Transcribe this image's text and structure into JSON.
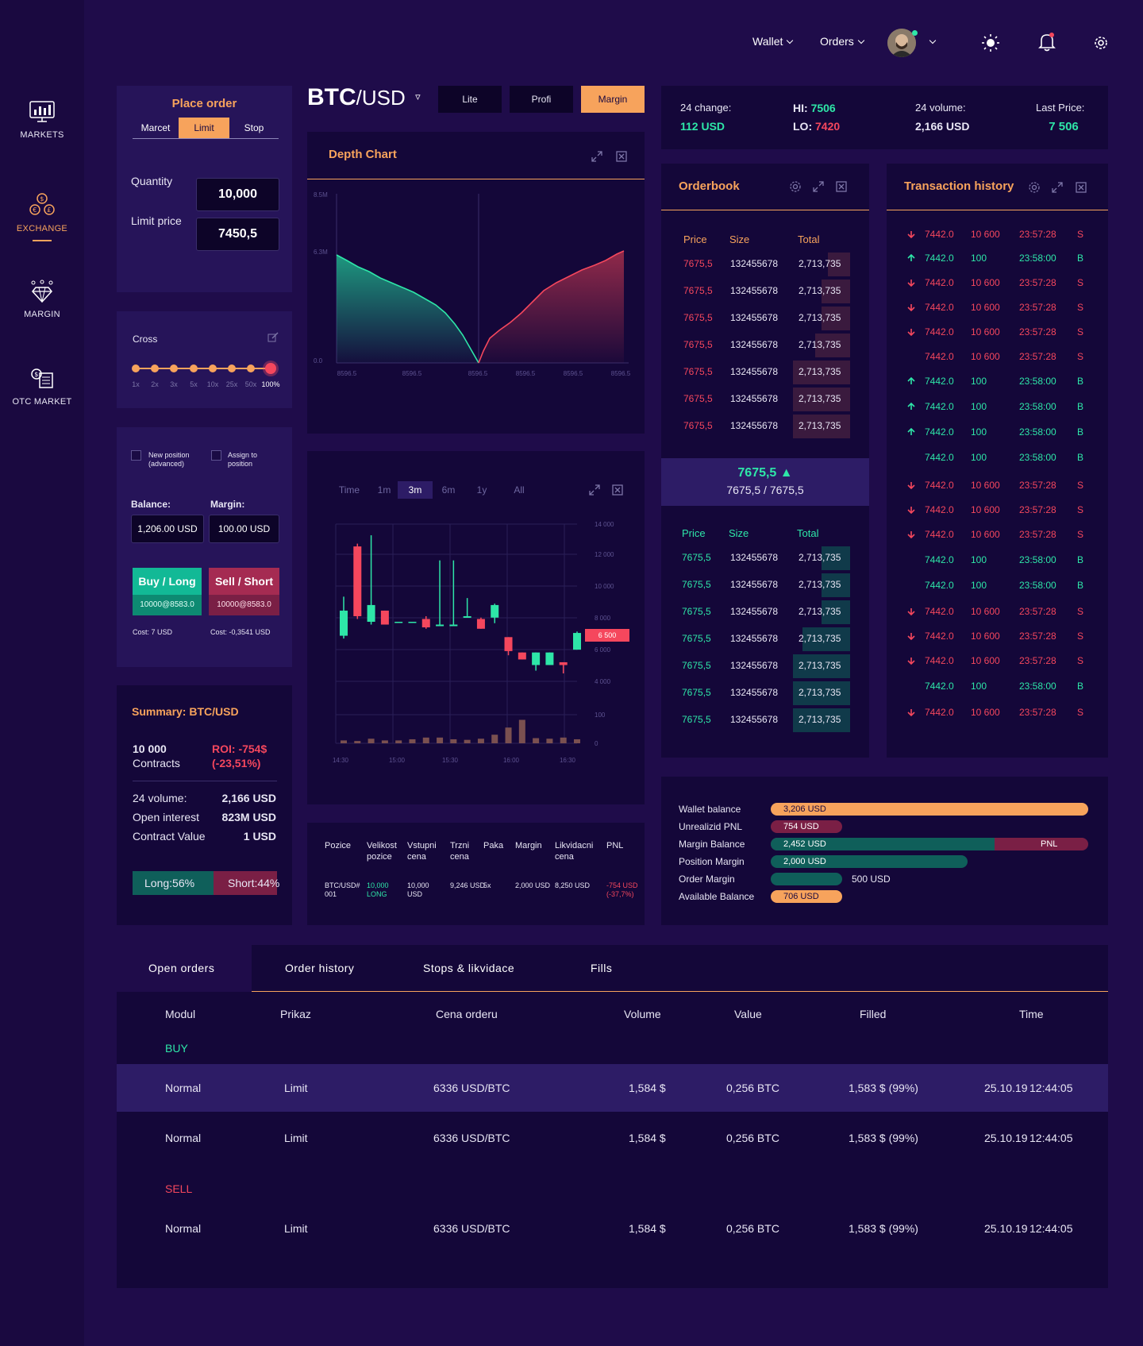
{
  "nav": {
    "markets": "MARKETS",
    "exchange": "EXCHANGE",
    "margin": "MARGIN",
    "otc": "OTC MARKET"
  },
  "topbar": {
    "wallet": "Wallet",
    "orders": "Orders"
  },
  "place_order": {
    "title": "Place order",
    "tabs": [
      "Marcet",
      "Limit",
      "Stop"
    ],
    "quantity_label": "Quantity",
    "quantity_value": "10,000",
    "limit_label": "Limit price",
    "limit_value": "7450,5"
  },
  "leverage": {
    "label": "Cross",
    "ticks": [
      "1x",
      "2x",
      "3x",
      "5x",
      "10x",
      "25x",
      "50x",
      "100%"
    ],
    "selected_index": 7
  },
  "position": {
    "new_position": "New position (advanced)",
    "assign": "Assign to position",
    "balance_label": "Balance:",
    "margin_label": "Margin:",
    "balance_value": "1,206.00 USD",
    "margin_value": "100.00 USD",
    "buy_label": "Buy / Long",
    "buy_sub": "10000@8583.0",
    "sell_label": "Sell / Short",
    "sell_sub": "10000@8583.0",
    "buy_cost": "Cost: 7 USD",
    "sell_cost": "Cost: -0,3541 USD"
  },
  "summary": {
    "title": "Summary: BTC/USD",
    "contracts_value": "10 000",
    "contracts_label": "Contracts",
    "roi_line1": "ROI: -754$",
    "roi_line2": "(-23,51%)",
    "rows": [
      {
        "label": "24 volume:",
        "value": "2,166 USD"
      },
      {
        "label": "Open interest",
        "value": "823M USD"
      },
      {
        "label": "Contract Value",
        "value": "1 USD"
      }
    ],
    "long": "Long:56%",
    "short": "Short:44%",
    "long_fraction": 0.56
  },
  "pair": {
    "base": "BTC",
    "quote": "/USD",
    "modes": [
      "Lite",
      "Profi",
      "Margin"
    ],
    "active_mode": 2
  },
  "depth": {
    "title": "Depth Chart",
    "y_ticks": [
      "8.5M",
      "6.3M",
      "0.0"
    ],
    "x_ticks": [
      "8596.5",
      "8596.5",
      "8596.5",
      "8596.5",
      "8596.5",
      "8596.5"
    ]
  },
  "candles": {
    "ranges": [
      "Time",
      "1m",
      "3m",
      "6m",
      "1y",
      "All"
    ],
    "active_range": 2,
    "y_ticks": [
      "14 000",
      "12 000",
      "10 000",
      "8 000",
      "6 000",
      "4 000",
      "100",
      "0"
    ],
    "x_ticks": [
      "14:30",
      "15:00",
      "15:30",
      "16:00",
      "16:30"
    ],
    "price_tag": "6 500",
    "ylim": [
      0,
      14000
    ],
    "series": [
      {
        "o": 6000,
        "c": 7800,
        "h": 8800,
        "l": 5800
      },
      {
        "o": 12400,
        "c": 7400,
        "h": 12600,
        "l": 7200
      },
      {
        "o": 7000,
        "c": 8200,
        "h": 13200,
        "l": 6800
      },
      {
        "o": 7800,
        "c": 6800,
        "h": 7800,
        "l": 6800
      },
      {
        "o": 7000,
        "c": 7000,
        "h": 7000,
        "l": 7000
      },
      {
        "o": 7000,
        "c": 7000,
        "h": 7000,
        "l": 7000
      },
      {
        "o": 7200,
        "c": 6600,
        "h": 7400,
        "l": 6500
      },
      {
        "o": 6800,
        "c": 6800,
        "h": 11400,
        "l": 6800
      },
      {
        "o": 6800,
        "c": 6800,
        "h": 11400,
        "l": 6800
      },
      {
        "o": 7400,
        "c": 7400,
        "h": 8700,
        "l": 7400
      },
      {
        "o": 7200,
        "c": 6500,
        "h": 7300,
        "l": 6500
      },
      {
        "o": 7300,
        "c": 8200,
        "h": 8300,
        "l": 6900
      },
      {
        "o": 5900,
        "c": 4900,
        "h": 5900,
        "l": 4600
      },
      {
        "o": 4800,
        "c": 4300,
        "h": 4800,
        "l": 4300
      },
      {
        "o": 3900,
        "c": 4800,
        "h": 4800,
        "l": 3500
      },
      {
        "o": 3900,
        "c": 4800,
        "h": 4800,
        "l": 3900
      },
      {
        "o": 4100,
        "c": 3900,
        "h": 4100,
        "l": 3300
      },
      {
        "o": 5000,
        "c": 6200,
        "h": 6300,
        "l": 5000
      }
    ],
    "volume": [
      10,
      8,
      16,
      10,
      10,
      14,
      20,
      20,
      14,
      12,
      16,
      30,
      55,
      82,
      18,
      16,
      20,
      14
    ]
  },
  "positions_table": {
    "headers": [
      "Pozice",
      "Velikost pozice",
      "Vstupni cena",
      "Trzni cena",
      "Paka",
      "Margin",
      "Likvidacni cena",
      "PNL"
    ],
    "row": {
      "pozice": "BTC/USD# 001",
      "velikost": "10,000 LONG",
      "vstupni": "10,000 USD",
      "trzni": "9,246 USD",
      "paka": "5x",
      "margin": "2,000 USD",
      "likv": "8,250 USD",
      "pnl": "-754 USD (-37,7%)"
    }
  },
  "ticker": {
    "change_label": "24 change:",
    "change_value": "112 USD",
    "hi_label": "HI:",
    "hi_value": "7506",
    "lo_label": "LO:",
    "lo_value": "7420",
    "volume_label": "24 volume:",
    "volume_value": "2,166 USD",
    "last_label": "Last Price:",
    "last_value": "7 506"
  },
  "orderbook": {
    "title": "Orderbook",
    "headers": [
      "Price",
      "Size",
      "Total"
    ],
    "asks": [
      {
        "price": "7675,5",
        "size": "132455678",
        "total": "2,713,735",
        "fill": 0.35
      },
      {
        "price": "7675,5",
        "size": "132455678",
        "total": "2,713,735",
        "fill": 0.45
      },
      {
        "price": "7675,5",
        "size": "132455678",
        "total": "2,713,735",
        "fill": 0.45
      },
      {
        "price": "7675,5",
        "size": "132455678",
        "total": "2,713,735",
        "fill": 0.55
      },
      {
        "price": "7675,5",
        "size": "132455678",
        "total": "2,713,735",
        "fill": 0.9
      },
      {
        "price": "7675,5",
        "size": "132455678",
        "total": "2,713,735",
        "fill": 0.9
      },
      {
        "price": "7675,5",
        "size": "132455678",
        "total": "2,713,735",
        "fill": 0.9
      }
    ],
    "mid_price": "7675,5 ▲",
    "mid_spread": "7675,5 / 7675,5",
    "bids": [
      {
        "price": "7675,5",
        "size": "132455678",
        "total": "2,713,735",
        "fill": 0.45
      },
      {
        "price": "7675,5",
        "size": "132455678",
        "total": "2,713,735",
        "fill": 0.45
      },
      {
        "price": "7675,5",
        "size": "132455678",
        "total": "2,713,735",
        "fill": 0.45
      },
      {
        "price": "7675,5",
        "size": "132455678",
        "total": "2,713,735",
        "fill": 0.75
      },
      {
        "price": "7675,5",
        "size": "132455678",
        "total": "2,713,735",
        "fill": 0.9
      },
      {
        "price": "7675,5",
        "size": "132455678",
        "total": "2,713,735",
        "fill": 0.9
      },
      {
        "price": "7675,5",
        "size": "132455678",
        "total": "2,713,735",
        "fill": 0.9
      }
    ]
  },
  "transactions": {
    "title": "Transaction history",
    "rows": [
      {
        "dir": "down",
        "price": "7442.0",
        "qty": "10 600",
        "time": "23:57:28",
        "side": "S"
      },
      {
        "dir": "up",
        "price": "7442.0",
        "qty": "100",
        "time": "23:58:00",
        "side": "B"
      },
      {
        "dir": "down",
        "price": "7442.0",
        "qty": "10 600",
        "time": "23:57:28",
        "side": "S"
      },
      {
        "dir": "down",
        "price": "7442.0",
        "qty": "10 600",
        "time": "23:57:28",
        "side": "S"
      },
      {
        "dir": "down",
        "price": "7442.0",
        "qty": "10 600",
        "time": "23:57:28",
        "side": "S"
      },
      {
        "dir": "none-s",
        "price": "7442.0",
        "qty": "10 600",
        "time": "23:57:28",
        "side": "S"
      },
      {
        "dir": "up",
        "price": "7442.0",
        "qty": "100",
        "time": "23:58:00",
        "side": "B"
      },
      {
        "dir": "up",
        "price": "7442.0",
        "qty": "100",
        "time": "23:58:00",
        "side": "B"
      },
      {
        "dir": "up",
        "price": "7442.0",
        "qty": "100",
        "time": "23:58:00",
        "side": "B"
      },
      {
        "dir": "none-b",
        "price": "7442.0",
        "qty": "100",
        "time": "23:58:00",
        "side": "B"
      },
      {
        "dir": "down",
        "price": "7442.0",
        "qty": "10 600",
        "time": "23:57:28",
        "side": "S"
      },
      {
        "dir": "down",
        "price": "7442.0",
        "qty": "10 600",
        "time": "23:57:28",
        "side": "S"
      },
      {
        "dir": "down",
        "price": "7442.0",
        "qty": "10 600",
        "time": "23:57:28",
        "side": "S"
      },
      {
        "dir": "none-b",
        "price": "7442.0",
        "qty": "100",
        "time": "23:58:00",
        "side": "B"
      },
      {
        "dir": "none-b",
        "price": "7442.0",
        "qty": "100",
        "time": "23:58:00",
        "side": "B"
      },
      {
        "dir": "down",
        "price": "7442.0",
        "qty": "10 600",
        "time": "23:57:28",
        "side": "S"
      },
      {
        "dir": "down",
        "price": "7442.0",
        "qty": "10 600",
        "time": "23:57:28",
        "side": "S"
      },
      {
        "dir": "down",
        "price": "7442.0",
        "qty": "10 600",
        "time": "23:57:28",
        "side": "S"
      },
      {
        "dir": "none-b",
        "price": "7442.0",
        "qty": "100",
        "time": "23:58:00",
        "side": "B"
      },
      {
        "dir": "down",
        "price": "7442.0",
        "qty": "10 600",
        "time": "23:57:28",
        "side": "S"
      }
    ]
  },
  "balances": {
    "wallet_label": "Wallet balance",
    "wallet_value": "3,206 USD",
    "unreal_label": "Unrealizid PNL",
    "unreal_value": "754 USD",
    "marginbal_label": "Margin Balance",
    "marginbal_value": "2,452 USD",
    "marginbal_pnl": "PNL",
    "posmargin_label": "Position Margin",
    "posmargin_value": "2,000 USD",
    "ordermargin_label": "Order Margin",
    "ordermargin_value": "500 USD",
    "avail_label": "Available Balance",
    "avail_value": "706 USD"
  },
  "bottom": {
    "tabs": [
      "Open orders",
      "Order history",
      "Stops & likvidace",
      "Fills"
    ],
    "active_tab": 0,
    "headers": [
      "Modul",
      "Prikaz",
      "Cena orderu",
      "Volume",
      "Value",
      "Filled",
      "Time"
    ],
    "buy_label": "BUY",
    "sell_label": "SELL",
    "buy_rows": [
      {
        "modul": "Normal",
        "prikaz": "Limit",
        "cena": "6336 USD/BTC",
        "volume": "1,584 $",
        "value": "0,256 BTC",
        "filled": "1,583 $ (99%)",
        "date": "25.10.19",
        "time": "12:44:05"
      },
      {
        "modul": "Normal",
        "prikaz": "Limit",
        "cena": "6336 USD/BTC",
        "volume": "1,584 $",
        "value": "0,256 BTC",
        "filled": "1,583 $ (99%)",
        "date": "25.10.19",
        "time": "12:44:05"
      }
    ],
    "sell_rows": [
      {
        "modul": "Normal",
        "prikaz": "Limit",
        "cena": "6336 USD/BTC",
        "volume": "1,584 $",
        "value": "0,256 BTC",
        "filled": "1,583 $ (99%)",
        "date": "25.10.19",
        "time": "12:44:05"
      }
    ]
  }
}
